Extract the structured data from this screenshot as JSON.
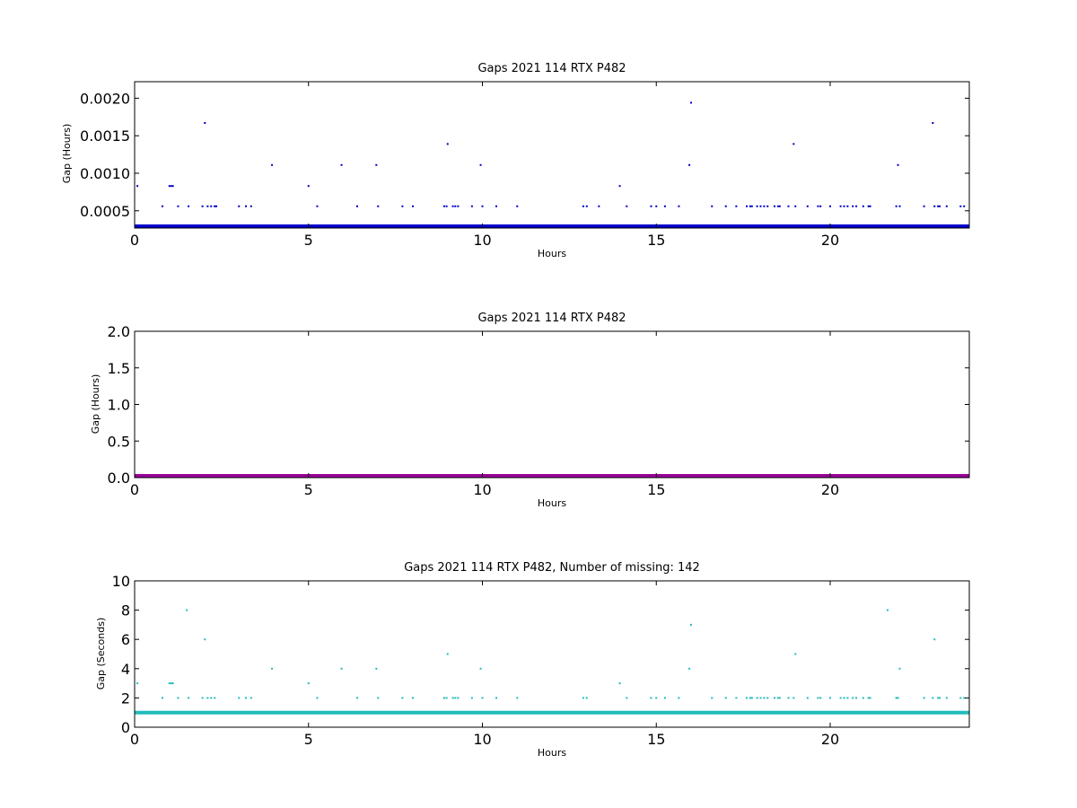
{
  "chart_data": [
    {
      "type": "scatter",
      "title": "Gaps 2021 114 RTX  P482",
      "xlabel": "Hours",
      "ylabel": "Gap (Hours)",
      "xlim": [
        0,
        24
      ],
      "ylim": [
        0.00027,
        0.00222
      ],
      "xticks": [
        0,
        5,
        10,
        15,
        20
      ],
      "xtick_labels": [
        "0",
        "5",
        "10",
        "15",
        "20"
      ],
      "yticks": [
        0.0005,
        0.001,
        0.0015,
        0.002
      ],
      "ytick_labels": [
        "0.0005",
        "0.0010",
        "0.0015",
        "0.0020"
      ],
      "color": "#0000cc",
      "baseline": 0.000278,
      "series": [
        {
          "x": [
            0.08,
            0.8,
            1.0,
            1.05,
            1.1,
            1.25,
            1.55,
            1.95,
            2.02,
            2.1,
            2.2,
            2.3,
            2.35,
            3.0,
            3.2,
            3.35,
            3.95,
            5.0,
            5.25,
            5.95,
            6.4,
            6.95,
            7.0,
            7.7,
            8.0,
            8.9,
            8.97,
            9.0,
            9.15,
            9.22,
            9.3,
            9.7,
            9.95,
            10.0,
            10.4,
            11.0,
            12.9,
            13.0,
            13.35,
            13.95,
            14.15,
            14.85,
            15.0,
            15.25,
            15.65,
            15.95,
            16.0,
            16.6,
            17.0,
            17.3,
            17.6,
            17.7,
            17.75,
            17.9,
            18.0,
            18.1,
            18.2,
            18.4,
            18.5,
            18.55,
            18.8,
            18.95,
            19.0,
            19.35,
            19.65,
            19.72,
            20.0,
            20.3,
            20.4,
            20.5,
            20.65,
            20.75,
            20.95,
            21.1,
            21.15,
            21.9,
            21.95,
            22.0,
            22.7,
            22.95,
            23.0,
            23.1,
            23.15,
            23.35,
            23.75,
            23.85
          ],
          "y": [
            0.00083,
            0.00056,
            0.00083,
            0.00083,
            0.00083,
            0.00056,
            0.00056,
            0.00056,
            0.00167,
            0.00056,
            0.00056,
            0.00056,
            0.00056,
            0.00056,
            0.00056,
            0.00056,
            0.00111,
            0.00083,
            0.00056,
            0.00111,
            0.00056,
            0.00111,
            0.00056,
            0.00056,
            0.00056,
            0.00056,
            0.00056,
            0.00139,
            0.00056,
            0.00056,
            0.00056,
            0.00056,
            0.00111,
            0.00056,
            0.00056,
            0.00056,
            0.00056,
            0.00056,
            0.00056,
            0.00083,
            0.00056,
            0.00056,
            0.00056,
            0.00056,
            0.00056,
            0.00111,
            0.00194,
            0.00056,
            0.00056,
            0.00056,
            0.00056,
            0.00056,
            0.00056,
            0.00056,
            0.00056,
            0.00056,
            0.00056,
            0.00056,
            0.00056,
            0.00056,
            0.00056,
            0.00139,
            0.00056,
            0.00056,
            0.00056,
            0.00056,
            0.00056,
            0.00056,
            0.00056,
            0.00056,
            0.00056,
            0.00056,
            0.00056,
            0.00056,
            0.00056,
            0.00056,
            0.00111,
            0.00056,
            0.00056,
            0.00167,
            0.00056,
            0.00056,
            0.00056,
            0.00056,
            0.00056,
            0.00056
          ]
        }
      ]
    },
    {
      "type": "scatter",
      "title": "Gaps 2021 114 RTX  P482",
      "xlabel": "Hours",
      "ylabel": "Gap (Hours)",
      "xlim": [
        0,
        24
      ],
      "ylim": [
        0,
        2.0
      ],
      "xticks": [
        0,
        5,
        10,
        15,
        20
      ],
      "xtick_labels": [
        "0",
        "5",
        "10",
        "15",
        "20"
      ],
      "yticks": [
        0.0,
        0.5,
        1.0,
        1.5,
        2.0
      ],
      "ytick_labels": [
        "0.0",
        "0.5",
        "1.0",
        "1.5",
        "2.0"
      ],
      "color": "#990099",
      "baseline": 0.0,
      "series": [
        {
          "x": [],
          "y": []
        }
      ]
    },
    {
      "type": "scatter",
      "title": "Gaps 2021 114 RTX  P482, Number of missing: 142",
      "xlabel": "Hours",
      "ylabel": "Gap (Seconds)",
      "xlim": [
        0,
        24
      ],
      "ylim": [
        0,
        10
      ],
      "xticks": [
        0,
        5,
        10,
        15,
        20
      ],
      "xtick_labels": [
        "0",
        "5",
        "10",
        "15",
        "20"
      ],
      "yticks": [
        0,
        2,
        4,
        6,
        8,
        10
      ],
      "ytick_labels": [
        "0",
        "2",
        "4",
        "6",
        "8",
        "10"
      ],
      "color": "#22bbbb",
      "baseline": 1.0,
      "series": [
        {
          "x": [
            0.08,
            0.8,
            1.0,
            1.05,
            1.1,
            1.25,
            1.5,
            1.55,
            1.95,
            2.02,
            2.1,
            2.2,
            2.3,
            3.0,
            3.2,
            3.35,
            3.95,
            5.0,
            5.25,
            5.95,
            6.4,
            6.95,
            7.0,
            7.7,
            8.0,
            8.9,
            8.97,
            9.0,
            9.15,
            9.22,
            9.3,
            9.7,
            9.95,
            10.0,
            10.4,
            11.0,
            12.9,
            13.0,
            13.95,
            14.15,
            14.85,
            15.0,
            15.25,
            15.65,
            15.95,
            16.0,
            16.6,
            17.0,
            17.3,
            17.6,
            17.7,
            17.75,
            17.9,
            18.0,
            18.1,
            18.2,
            18.4,
            18.5,
            18.55,
            18.8,
            18.95,
            19.0,
            19.35,
            19.65,
            19.72,
            20.0,
            20.3,
            20.4,
            20.5,
            20.65,
            20.75,
            20.95,
            21.1,
            21.15,
            21.65,
            21.9,
            21.95,
            22.0,
            22.7,
            22.95,
            23.0,
            23.1,
            23.15,
            23.35,
            23.75,
            23.85
          ],
          "y": [
            3,
            2,
            3,
            3,
            3,
            2,
            8,
            2,
            2,
            6,
            2,
            2,
            2,
            2,
            2,
            2,
            4,
            3,
            2,
            4,
            2,
            4,
            2,
            2,
            2,
            2,
            2,
            5,
            2,
            2,
            2,
            2,
            4,
            2,
            2,
            2,
            2,
            2,
            3,
            2,
            2,
            2,
            2,
            2,
            4,
            7,
            2,
            2,
            2,
            2,
            2,
            2,
            2,
            2,
            2,
            2,
            2,
            2,
            2,
            2,
            2,
            5,
            2,
            2,
            2,
            2,
            2,
            2,
            2,
            2,
            2,
            2,
            2,
            2,
            8,
            2,
            2,
            4,
            2,
            2,
            6,
            2,
            2,
            2,
            2,
            2
          ]
        }
      ]
    }
  ]
}
